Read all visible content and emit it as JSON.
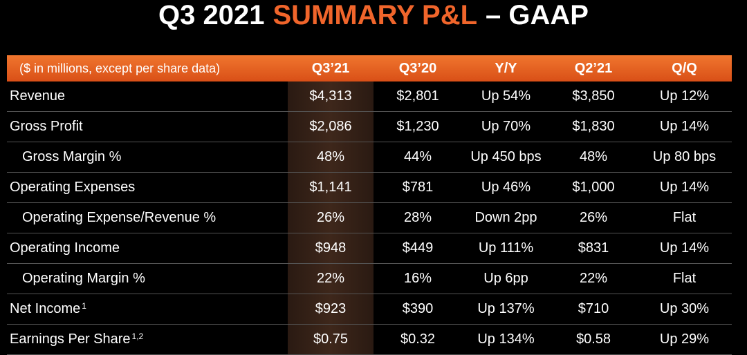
{
  "title": {
    "part1": "Q3 2021",
    "part2": "SUMMARY P&L",
    "part3": "– GAAP"
  },
  "table": {
    "header": [
      "($ in millions, except per share data)",
      "Q3’21",
      "Q3’20",
      "Y/Y",
      "Q2’21",
      "Q/Q"
    ],
    "rows": [
      {
        "label": "Revenue",
        "cells": [
          "$4,313",
          "$2,801",
          "Up 54%",
          "$3,850",
          "Up 12%"
        ]
      },
      {
        "label": "Gross Profit",
        "cells": [
          "$2,086",
          "$1,230",
          "Up 70%",
          "$1,830",
          "Up 14%"
        ]
      },
      {
        "label": "Gross Margin %",
        "cells": [
          "48%",
          "44%",
          "Up 450 bps",
          "48%",
          "Up 80 bps"
        ]
      },
      {
        "label": "Operating Expenses",
        "cells": [
          "$1,141",
          "$781",
          "Up 46%",
          "$1,000",
          "Up 14%"
        ]
      },
      {
        "label": "Operating Expense/Revenue %",
        "cells": [
          "26%",
          "28%",
          "Down 2pp",
          "26%",
          "Flat"
        ]
      },
      {
        "label": "Operating Income",
        "cells": [
          "$948",
          "$449",
          "Up 111%",
          "$831",
          "Up 14%"
        ]
      },
      {
        "label": "Operating Margin %",
        "cells": [
          "22%",
          "16%",
          "Up 6pp",
          "22%",
          "Flat"
        ]
      },
      {
        "label": "Net Income",
        "note": "1",
        "cells": [
          "$923",
          "$390",
          "Up 137%",
          "$710",
          "Up 30%"
        ]
      },
      {
        "label": "Earnings Per Share",
        "note": "1,2",
        "cells": [
          "$0.75",
          "$0.32",
          "Up 134%",
          "$0.58",
          "Up 29%"
        ]
      }
    ]
  }
}
